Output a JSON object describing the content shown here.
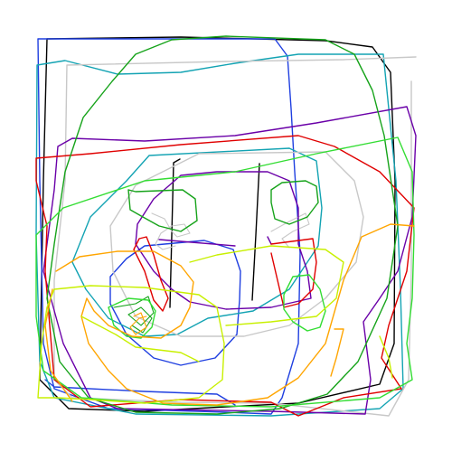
{
  "drawing": {
    "colors": {
      "black": "#000000",
      "blue": "#1f3fe0",
      "green": "#16a31a",
      "cyan": "#13a3b3",
      "gray": "#c8c8c8",
      "purple": "#6a00a8",
      "red": "#e00000",
      "lime": "#33dd33",
      "orange": "#ffa500",
      "yellow": "#c8f000"
    }
  }
}
